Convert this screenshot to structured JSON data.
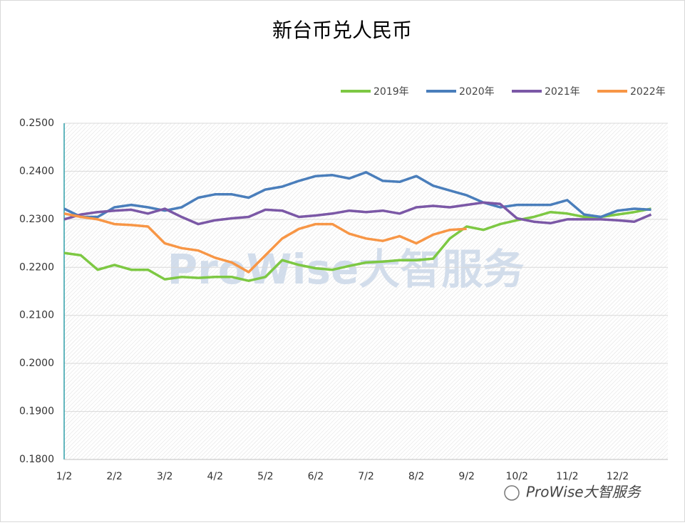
{
  "chart_data": {
    "type": "line",
    "title": "新台币兑人民币",
    "watermark": "ProWise大智服务",
    "footer": "ProWise大智服务",
    "categories": [
      "1/2",
      null,
      null,
      "2/2",
      null,
      null,
      "3/2",
      null,
      null,
      "4/2",
      null,
      null,
      "5/2",
      null,
      null,
      "6/2",
      null,
      null,
      "7/2",
      null,
      null,
      "8/2",
      null,
      null,
      "9/2",
      null,
      null,
      "10/2",
      null,
      null,
      "11/2",
      null,
      null,
      "12/2",
      null,
      null
    ],
    "series": [
      {
        "name": "2019年",
        "color": "#7dc843",
        "values": [
          0.223,
          0.2225,
          0.2195,
          0.2205,
          0.2195,
          0.2195,
          0.2175,
          0.218,
          0.2178,
          0.218,
          0.218,
          0.2172,
          0.218,
          0.2215,
          0.2205,
          0.2198,
          0.2195,
          0.2203,
          0.221,
          0.2212,
          0.2215,
          0.2215,
          0.2218,
          0.226,
          0.2285,
          0.2278,
          0.229,
          0.2298,
          0.2305,
          0.2315,
          0.2312,
          0.2305,
          0.2305,
          0.231,
          0.2315,
          0.2322
        ]
      },
      {
        "name": "2020年",
        "color": "#4a7ebb",
        "values": [
          0.2322,
          0.2305,
          0.2305,
          0.2325,
          0.233,
          0.2325,
          0.2318,
          0.2325,
          0.2345,
          0.2352,
          0.2352,
          0.2345,
          0.2362,
          0.2368,
          0.238,
          0.239,
          0.2392,
          0.2385,
          0.2398,
          0.238,
          0.2378,
          0.239,
          0.237,
          0.236,
          0.235,
          0.2335,
          0.2325,
          0.233,
          0.233,
          0.233,
          0.234,
          0.231,
          0.2305,
          0.2318,
          0.2322,
          0.232
        ]
      },
      {
        "name": "2021年",
        "color": "#7b58a6",
        "values": [
          0.23,
          0.231,
          0.2315,
          0.2318,
          0.232,
          0.2312,
          0.2322,
          0.2305,
          0.229,
          0.2298,
          0.2302,
          0.2305,
          0.232,
          0.2318,
          0.2305,
          0.2308,
          0.2312,
          0.2318,
          0.2315,
          0.2318,
          0.2312,
          0.2325,
          0.2328,
          0.2325,
          0.233,
          0.2335,
          0.2332,
          0.2302,
          0.2295,
          0.2292,
          0.23,
          0.23,
          0.23,
          0.2298,
          0.2295,
          0.231
        ]
      },
      {
        "name": "2022年",
        "color": "#f79646",
        "values": [
          0.2312,
          0.2305,
          0.23,
          0.229,
          0.2288,
          0.2285,
          0.225,
          0.224,
          0.2235,
          0.222,
          0.221,
          0.219,
          0.2225,
          0.226,
          0.228,
          0.229,
          0.229,
          0.227,
          0.226,
          0.2255,
          0.2265,
          0.225,
          0.2268,
          0.2278,
          0.228,
          null,
          null,
          null,
          null,
          null,
          null,
          null,
          null,
          null,
          null,
          null
        ]
      }
    ],
    "ylim": [
      0.18,
      0.25
    ],
    "yticks": [
      {
        "value": 0.18,
        "label": "0.1800"
      },
      {
        "value": 0.19,
        "label": "0.1900"
      },
      {
        "value": 0.2,
        "label": "0.2000"
      },
      {
        "value": 0.21,
        "label": "0.2100"
      },
      {
        "value": 0.22,
        "label": "0.2200"
      },
      {
        "value": 0.23,
        "label": "0.2300"
      },
      {
        "value": 0.24,
        "label": "0.2400"
      },
      {
        "value": 0.25,
        "label": "0.2500"
      }
    ],
    "grid": true,
    "legend": "top-right"
  }
}
